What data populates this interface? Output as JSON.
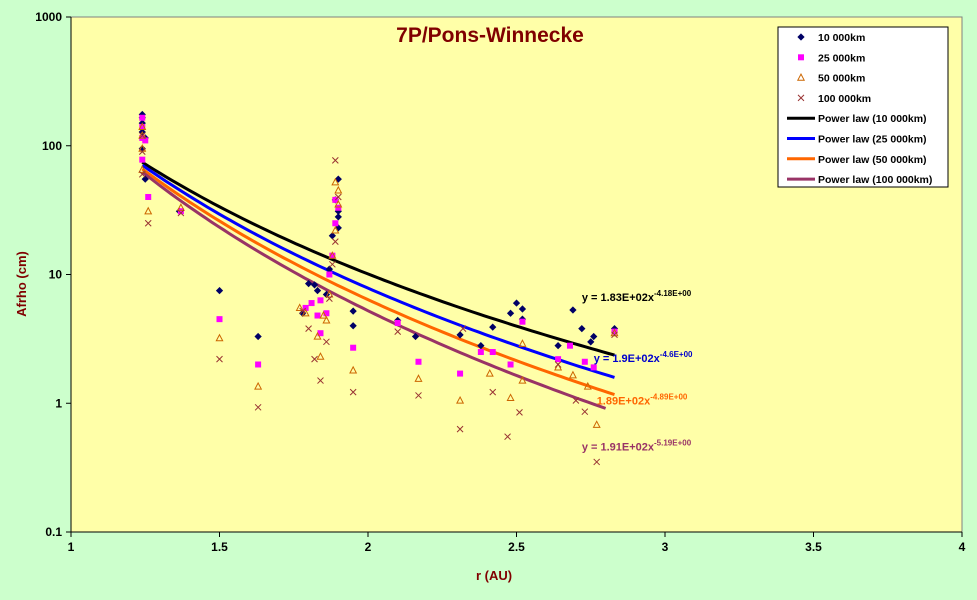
{
  "chart_data": {
    "type": "scatter",
    "title": "7P/Pons-Winnecke",
    "xlabel": "r (AU)",
    "ylabel": "Afrho (cm)",
    "xlim": [
      1,
      4
    ],
    "ylim": [
      0.1,
      1000
    ],
    "yscale": "log",
    "xticks": [
      "1",
      "1.5",
      "2",
      "2.5",
      "3",
      "3.5",
      "4"
    ],
    "yticks": [
      "0.1",
      "1",
      "10",
      "100",
      "1000"
    ],
    "plot_background": "#ffffa8",
    "grid": false,
    "legend_position": "top-right",
    "series": [
      {
        "name": "10 000km",
        "marker": "diamond",
        "color": "#000066",
        "points": [
          [
            1.24,
            175
          ],
          [
            1.24,
            165
          ],
          [
            1.24,
            150
          ],
          [
            1.24,
            128
          ],
          [
            1.24,
            95
          ],
          [
            1.25,
            115
          ],
          [
            1.25,
            55
          ],
          [
            1.365,
            31
          ],
          [
            1.5,
            7.5
          ],
          [
            1.63,
            3.3
          ],
          [
            1.78,
            5.0
          ],
          [
            1.8,
            8.5
          ],
          [
            1.82,
            8.3
          ],
          [
            1.83,
            7.5
          ],
          [
            1.86,
            7.0
          ],
          [
            1.87,
            11
          ],
          [
            1.88,
            20
          ],
          [
            1.89,
            38
          ],
          [
            1.9,
            55
          ],
          [
            1.9,
            31
          ],
          [
            1.9,
            28
          ],
          [
            1.9,
            23
          ],
          [
            1.95,
            5.2
          ],
          [
            1.95,
            4.0
          ],
          [
            2.1,
            4.4
          ],
          [
            2.16,
            3.3
          ],
          [
            2.31,
            3.4
          ],
          [
            2.38,
            2.8
          ],
          [
            2.42,
            3.9
          ],
          [
            2.48,
            5.0
          ],
          [
            2.5,
            6.0
          ],
          [
            2.52,
            5.4
          ],
          [
            2.52,
            4.5
          ],
          [
            2.64,
            2.8
          ],
          [
            2.69,
            5.3
          ],
          [
            2.72,
            3.8
          ],
          [
            2.75,
            3.0
          ],
          [
            2.76,
            3.3
          ],
          [
            2.83,
            3.8
          ]
        ]
      },
      {
        "name": "25 000km",
        "marker": "square",
        "color": "#ff00ff",
        "points": [
          [
            1.24,
            165
          ],
          [
            1.24,
            140
          ],
          [
            1.24,
            115
          ],
          [
            1.24,
            78
          ],
          [
            1.25,
            110
          ],
          [
            1.26,
            40
          ],
          [
            1.37,
            31
          ],
          [
            1.5,
            4.5
          ],
          [
            1.63,
            2.0
          ],
          [
            1.79,
            5.5
          ],
          [
            1.81,
            6.0
          ],
          [
            1.83,
            4.8
          ],
          [
            1.84,
            6.3
          ],
          [
            1.84,
            3.5
          ],
          [
            1.86,
            5.0
          ],
          [
            1.87,
            10
          ],
          [
            1.88,
            14
          ],
          [
            1.89,
            25
          ],
          [
            1.89,
            38
          ],
          [
            1.9,
            33
          ],
          [
            1.95,
            2.7
          ],
          [
            2.1,
            4.2
          ],
          [
            2.17,
            2.1
          ],
          [
            2.31,
            1.7
          ],
          [
            2.38,
            2.5
          ],
          [
            2.42,
            2.5
          ],
          [
            2.48,
            2.0
          ],
          [
            2.52,
            4.3
          ],
          [
            2.64,
            2.2
          ],
          [
            2.68,
            2.8
          ],
          [
            2.73,
            2.1
          ],
          [
            2.76,
            1.9
          ],
          [
            2.83,
            3.6
          ]
        ]
      },
      {
        "name": "50 000km",
        "marker": "triangle",
        "color": "#cc6600",
        "points": [
          [
            1.24,
            140
          ],
          [
            1.24,
            120
          ],
          [
            1.24,
            95
          ],
          [
            1.24,
            65
          ],
          [
            1.26,
            31
          ],
          [
            1.37,
            33
          ],
          [
            1.5,
            3.2
          ],
          [
            1.63,
            1.35
          ],
          [
            1.77,
            5.5
          ],
          [
            1.79,
            5.0
          ],
          [
            1.83,
            3.3
          ],
          [
            1.84,
            2.3
          ],
          [
            1.85,
            4.8
          ],
          [
            1.86,
            4.4
          ],
          [
            1.87,
            7.0
          ],
          [
            1.88,
            14
          ],
          [
            1.89,
            22
          ],
          [
            1.89,
            52
          ],
          [
            1.9,
            45
          ],
          [
            1.9,
            35
          ],
          [
            1.95,
            1.8
          ],
          [
            2.17,
            1.55
          ],
          [
            2.31,
            1.05
          ],
          [
            2.41,
            1.7
          ],
          [
            2.48,
            1.1
          ],
          [
            2.52,
            2.9
          ],
          [
            2.52,
            1.5
          ],
          [
            2.64,
            1.9
          ],
          [
            2.69,
            1.65
          ],
          [
            2.74,
            1.35
          ],
          [
            2.77,
            0.68
          ],
          [
            2.83,
            3.5
          ]
        ]
      },
      {
        "name": "100 000km",
        "marker": "cross",
        "color": "#993333",
        "points": [
          [
            1.24,
            120
          ],
          [
            1.24,
            90
          ],
          [
            1.24,
            60
          ],
          [
            1.26,
            25
          ],
          [
            1.37,
            30
          ],
          [
            1.5,
            2.2
          ],
          [
            1.63,
            0.93
          ],
          [
            1.78,
            5.2
          ],
          [
            1.8,
            3.8
          ],
          [
            1.82,
            2.2
          ],
          [
            1.84,
            1.5
          ],
          [
            1.86,
            3.0
          ],
          [
            1.87,
            6.5
          ],
          [
            1.88,
            12
          ],
          [
            1.89,
            18
          ],
          [
            1.89,
            77
          ],
          [
            1.9,
            40
          ],
          [
            1.95,
            1.22
          ],
          [
            2.1,
            3.6
          ],
          [
            2.17,
            1.15
          ],
          [
            2.31,
            0.63
          ],
          [
            2.32,
            3.8
          ],
          [
            2.42,
            1.22
          ],
          [
            2.47,
            0.55
          ],
          [
            2.51,
            0.85
          ],
          [
            2.64,
            2.0
          ],
          [
            2.7,
            1.05
          ],
          [
            2.73,
            0.86
          ],
          [
            2.77,
            0.35
          ],
          [
            2.83,
            3.4
          ]
        ]
      },
      {
        "name": "Power law (10 000km)",
        "type": "line",
        "color": "#000000",
        "a": 183,
        "b": -4.18,
        "xrange": [
          1.24,
          2.83
        ]
      },
      {
        "name": "Power law (25 000km)",
        "type": "line",
        "color": "#0000ff",
        "a": 190,
        "b": -4.6,
        "xrange": [
          1.24,
          2.83
        ]
      },
      {
        "name": "Power law (50 000km)",
        "type": "line",
        "color": "#ff6600",
        "a": 189,
        "b": -4.89,
        "xrange": [
          1.24,
          2.83
        ]
      },
      {
        "name": "Power law (100 000km)",
        "type": "line",
        "color": "#993366",
        "a": 191,
        "b": -5.19,
        "xrange": [
          1.24,
          2.8
        ]
      }
    ],
    "annotations": [
      {
        "base": "y = 1.83E+02x",
        "exp": "-4.18E+00",
        "color": "#000000",
        "x": 2.72,
        "y": 6.2
      },
      {
        "base": "y = 1.9E+02x",
        "exp": "-4.6E+00",
        "color": "#0000cc",
        "x": 2.76,
        "y": 2.1
      },
      {
        "base": "1.89E+02x",
        "exp": "-4.89E+00",
        "color": "#ff6600",
        "x": 2.77,
        "y": 0.98
      },
      {
        "base": "y = 1.91E+02x",
        "exp": "-5.19E+00",
        "color": "#993366",
        "x": 2.72,
        "y": 0.43
      }
    ]
  }
}
